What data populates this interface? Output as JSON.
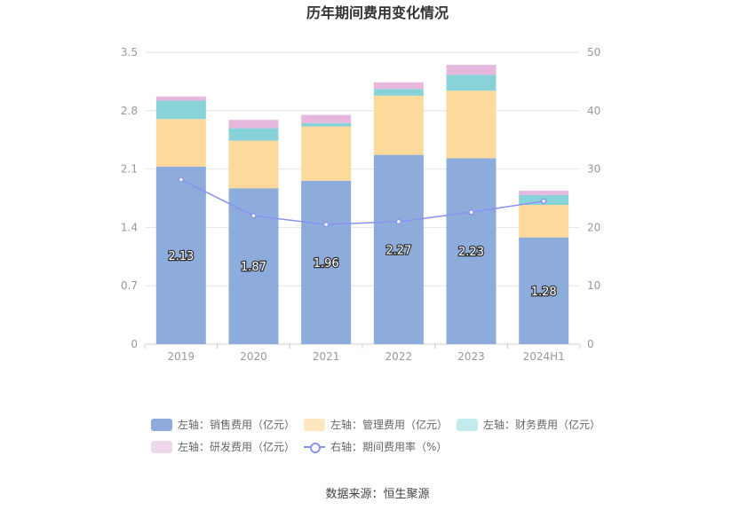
{
  "chart_data": {
    "type": "bar",
    "title": "历年期间费用变化情况",
    "categories": [
      "2019",
      "2020",
      "2021",
      "2022",
      "2023",
      "2024H1"
    ],
    "stacked": true,
    "left_axis": {
      "ylim": [
        0,
        3.5
      ],
      "ticks": [
        "0",
        "0.7",
        "1.4",
        "2.1",
        "2.8",
        "3.5"
      ]
    },
    "right_axis": {
      "ylim": [
        0,
        50
      ],
      "ticks": [
        "0",
        "10",
        "20",
        "30",
        "40",
        "50"
      ]
    },
    "grid": true,
    "legend_position": "bottom",
    "series": [
      {
        "name": "左轴：销售费用（亿元）",
        "type": "bar",
        "axis": "left",
        "color": "#8dacdb",
        "values": [
          2.13,
          1.87,
          1.96,
          2.27,
          2.23,
          1.28
        ],
        "show_labels": true
      },
      {
        "name": "左轴：管理费用（亿元）",
        "type": "bar",
        "axis": "left",
        "color": "#fdd99b",
        "values": [
          0.57,
          0.57,
          0.65,
          0.71,
          0.81,
          0.39
        ]
      },
      {
        "name": "左轴：财务费用（亿元）",
        "type": "bar",
        "axis": "left",
        "color": "#88d3d8",
        "values": [
          0.22,
          0.15,
          0.04,
          0.08,
          0.19,
          0.12
        ]
      },
      {
        "name": "左轴：研发费用（亿元）",
        "type": "bar",
        "axis": "left",
        "color": "#e6b8dd",
        "values": [
          0.05,
          0.1,
          0.1,
          0.08,
          0.12,
          0.05
        ]
      },
      {
        "name": "右轴：期间费用率（%）",
        "type": "line",
        "axis": "right",
        "color": "#8a92f0",
        "values": [
          28.2,
          22.0,
          20.5,
          21.0,
          22.6,
          24.5
        ]
      }
    ],
    "legend_swatches": [
      "#8dacdb",
      "#fde7c0",
      "#c3ebed",
      "#f0d8ec",
      "line"
    ]
  },
  "source": "数据来源：恒生聚源"
}
